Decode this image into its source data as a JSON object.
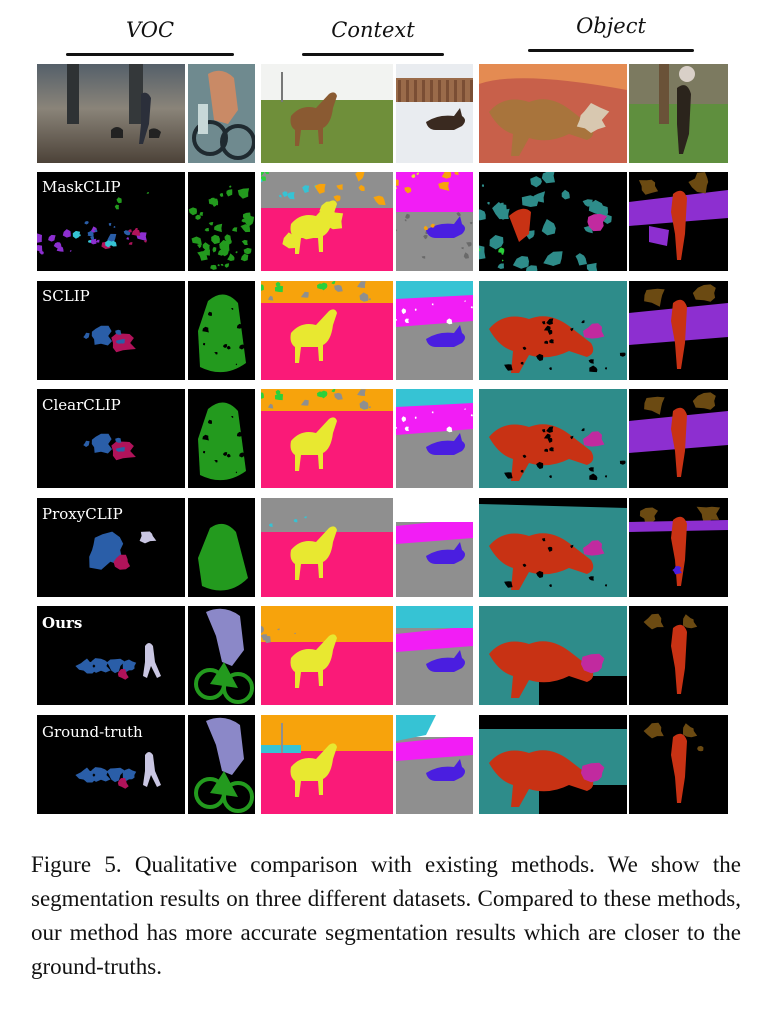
{
  "columns": [
    {
      "label": "VOC"
    },
    {
      "label": "Context"
    },
    {
      "label": "Object"
    }
  ],
  "rows": [
    {
      "label": "",
      "kind": "image"
    },
    {
      "label": "MaskCLIP",
      "kind": "noisy"
    },
    {
      "label": "SCLIP",
      "kind": "medium"
    },
    {
      "label": "ClearCLIP",
      "kind": "medium"
    },
    {
      "label": "ProxyCLIP",
      "kind": "clean"
    },
    {
      "label": "Ours",
      "kind": "ours"
    },
    {
      "label": "Ground-truth",
      "kind": "gt"
    }
  ],
  "colors": {
    "person": "#8b88c8",
    "bicycle": "#239a1e",
    "sheep": "#2a5ea8",
    "cow": "#b0135a",
    "horse": "#e8e830",
    "ground": "#fa1a78",
    "sky": "#8f8f8f",
    "tree": "#f7a30c",
    "fence": "#f21df5",
    "cat": "#4a1ee0",
    "sofa": "#2e8c8a",
    "dog": "#c83214",
    "dog_head": "#c12a9f",
    "plant": "#8d2fd0",
    "brown": "#6b4a12"
  },
  "caption": "Figure 5. Qualitative comparison with existing methods. We show the segmentation results on three different datasets. Compared to these methods, our method has more accurate segmentation results which are closer to the ground-truths."
}
